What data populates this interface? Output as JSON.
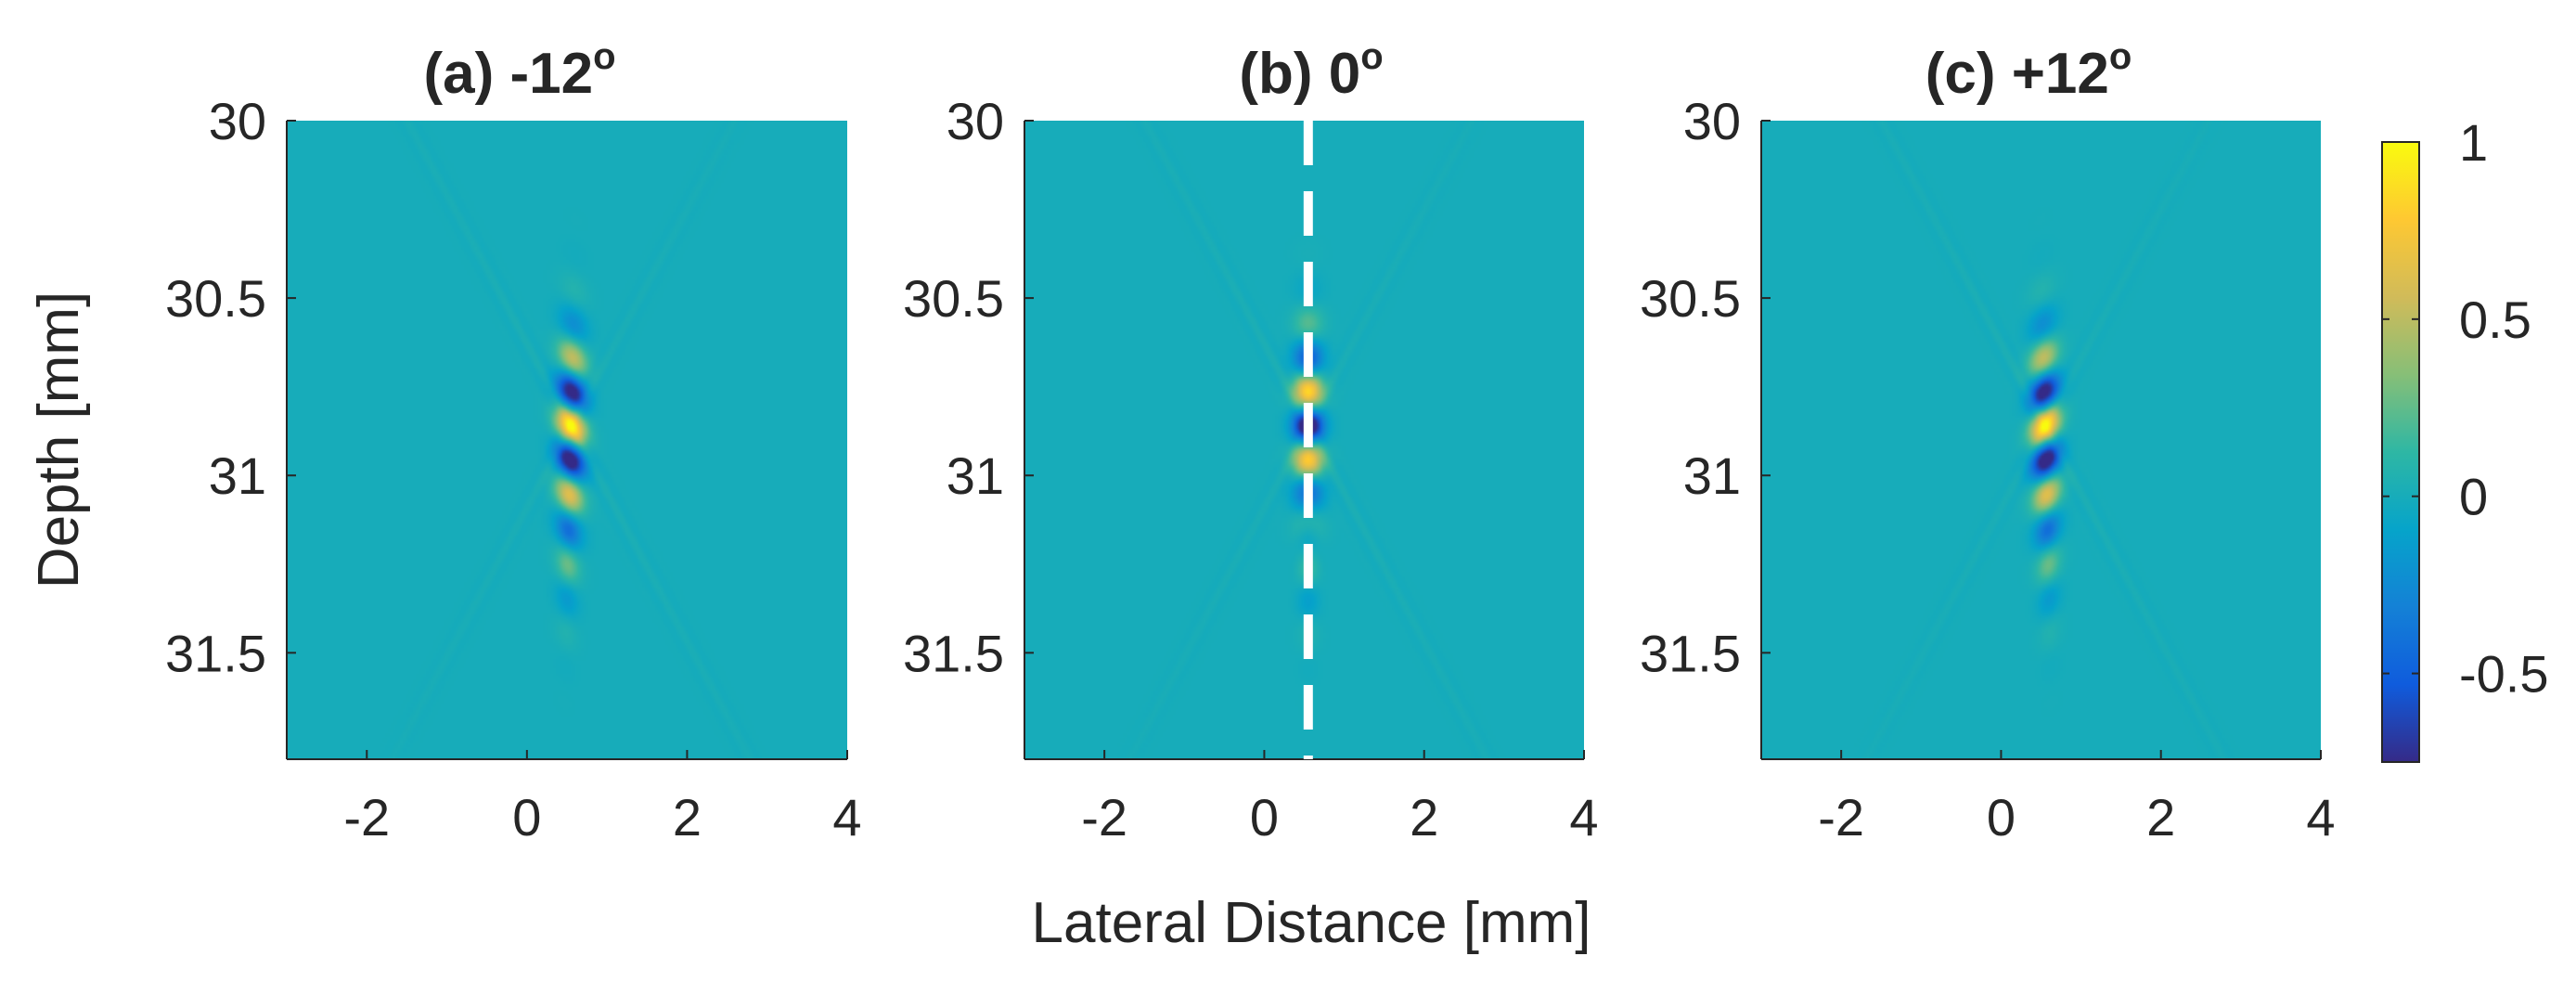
{
  "chart_data": [
    {
      "type": "heatmap",
      "panel": "a",
      "title": "(a) -12",
      "title_superscript": "o",
      "angle_deg": -12,
      "xlabel": "Lateral Distance [mm]",
      "ylabel": "Depth [mm]",
      "xlim": [
        -3,
        4
      ],
      "ylim": [
        30,
        31.8
      ],
      "x_ticks": [
        -2,
        0,
        2,
        4
      ],
      "x_tick_labels": [
        "-2",
        "0",
        "2",
        "4"
      ],
      "y_ticks": [
        30,
        30.5,
        31,
        31.5
      ],
      "y_tick_labels": [
        "30",
        "30.5",
        "31",
        "31.5"
      ],
      "peak_center_x": 0.55,
      "peak_center_depth": 30.86,
      "fringe_sign": 1
    },
    {
      "type": "heatmap",
      "panel": "b",
      "title": "(b) 0",
      "title_superscript": "o",
      "angle_deg": 0,
      "xlim": [
        -3,
        4
      ],
      "ylim": [
        30,
        31.8
      ],
      "x_ticks": [
        -2,
        0,
        2,
        4
      ],
      "x_tick_labels": [
        "-2",
        "0",
        "2",
        "4"
      ],
      "y_ticks": [
        30,
        30.5,
        31,
        31.5
      ],
      "y_tick_labels": [
        "30",
        "30.5",
        "31",
        "31.5"
      ],
      "peak_center_x": 0.55,
      "peak_center_depth": 30.86,
      "fringe_sign": -1,
      "dashed_line_x": 0.55
    },
    {
      "type": "heatmap",
      "panel": "c",
      "title": "(c) +12",
      "title_superscript": "o",
      "angle_deg": 12,
      "xlim": [
        -3,
        4
      ],
      "ylim": [
        30,
        31.8
      ],
      "x_ticks": [
        -2,
        0,
        2,
        4
      ],
      "x_tick_labels": [
        "-2",
        "0",
        "2",
        "4"
      ],
      "y_ticks": [
        30,
        30.5,
        31,
        31.5
      ],
      "y_tick_labels": [
        "30",
        "30.5",
        "31",
        "31.5"
      ],
      "peak_center_x": 0.55,
      "peak_center_depth": 30.86,
      "fringe_sign": 1
    }
  ],
  "colorbar": {
    "colormap": "parula",
    "range": [
      -0.75,
      1
    ],
    "ticks": [
      1,
      0.5,
      0,
      -0.5
    ],
    "tick_labels": [
      "1",
      "0.5",
      "0",
      "-0.5"
    ],
    "colors": [
      "#352a87",
      "#0f5cdd",
      "#1481d6",
      "#06a4ca",
      "#2eb7a4",
      "#87bf77",
      "#d1bb59",
      "#fec832",
      "#f9fb0e"
    ]
  },
  "labels": {
    "xlabel": "Lateral Distance [mm]",
    "ylabel": "Depth [mm]"
  }
}
